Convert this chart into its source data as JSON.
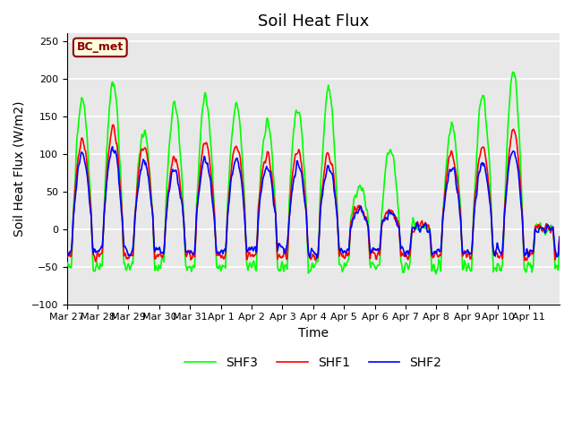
{
  "title": "Soil Heat Flux",
  "ylabel": "Soil Heat Flux (W/m2)",
  "xlabel": "Time",
  "legend_label": "BC_met",
  "series_labels": [
    "SHF1",
    "SHF2",
    "SHF3"
  ],
  "series_colors": [
    "red",
    "blue",
    "lime"
  ],
  "ylim": [
    -100,
    260
  ],
  "yticks": [
    -100,
    -50,
    0,
    50,
    100,
    150,
    200,
    250
  ],
  "xtick_labels": [
    "Mar 27",
    "Mar 28",
    "Mar 29",
    "Mar 30",
    "Mar 31",
    "Apr 1",
    "Apr 2",
    "Apr 3",
    "Apr 4",
    "Apr 5",
    "Apr 6",
    "Apr 7",
    "Apr 8",
    "Apr 9",
    "Apr 10",
    "Apr 11"
  ],
  "plot_bg_color": "#e8e8e8",
  "grid_color": "white",
  "title_fontsize": 13,
  "axis_label_fontsize": 10,
  "tick_fontsize": 8,
  "line_width": 1.2
}
